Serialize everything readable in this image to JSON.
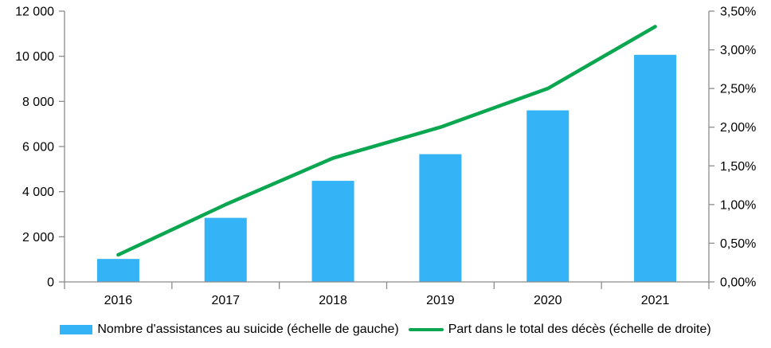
{
  "chart_data": {
    "type": "bar",
    "subtype": "combo-bar-line-dual-axis",
    "title": "",
    "categories": [
      "2016",
      "2017",
      "2018",
      "2019",
      "2020",
      "2021"
    ],
    "series": [
      {
        "name": "Nombre d'assistances au suicide (échelle de gauche)",
        "type": "bar",
        "axis": "left",
        "values": [
          1018,
          2838,
          4480,
          5661,
          7603,
          10064
        ],
        "color": "#34B3F7"
      },
      {
        "name": "Part dans le total des décès (échelle de droite)",
        "type": "line",
        "axis": "right",
        "values": [
          0.35,
          1.0,
          1.6,
          2.0,
          2.5,
          3.3
        ],
        "color": "#0AA750"
      }
    ],
    "left_axis": {
      "min": 0,
      "max": 12000,
      "step": 2000,
      "tick_labels": [
        "0",
        "2 000",
        "4 000",
        "6 000",
        "8 000",
        "10 000",
        "12 000"
      ]
    },
    "right_axis": {
      "min": 0,
      "max": 3.5,
      "step": 0.5,
      "tick_labels": [
        "0,00%",
        "0,50%",
        "1,00%",
        "1,50%",
        "2,00%",
        "2,50%",
        "3,00%",
        "3,50%"
      ]
    },
    "grid": false,
    "legend_position": "bottom",
    "axis_line_color": "#8C8C8C",
    "text_color": "#000000",
    "background_color": "#FFFFFF"
  }
}
